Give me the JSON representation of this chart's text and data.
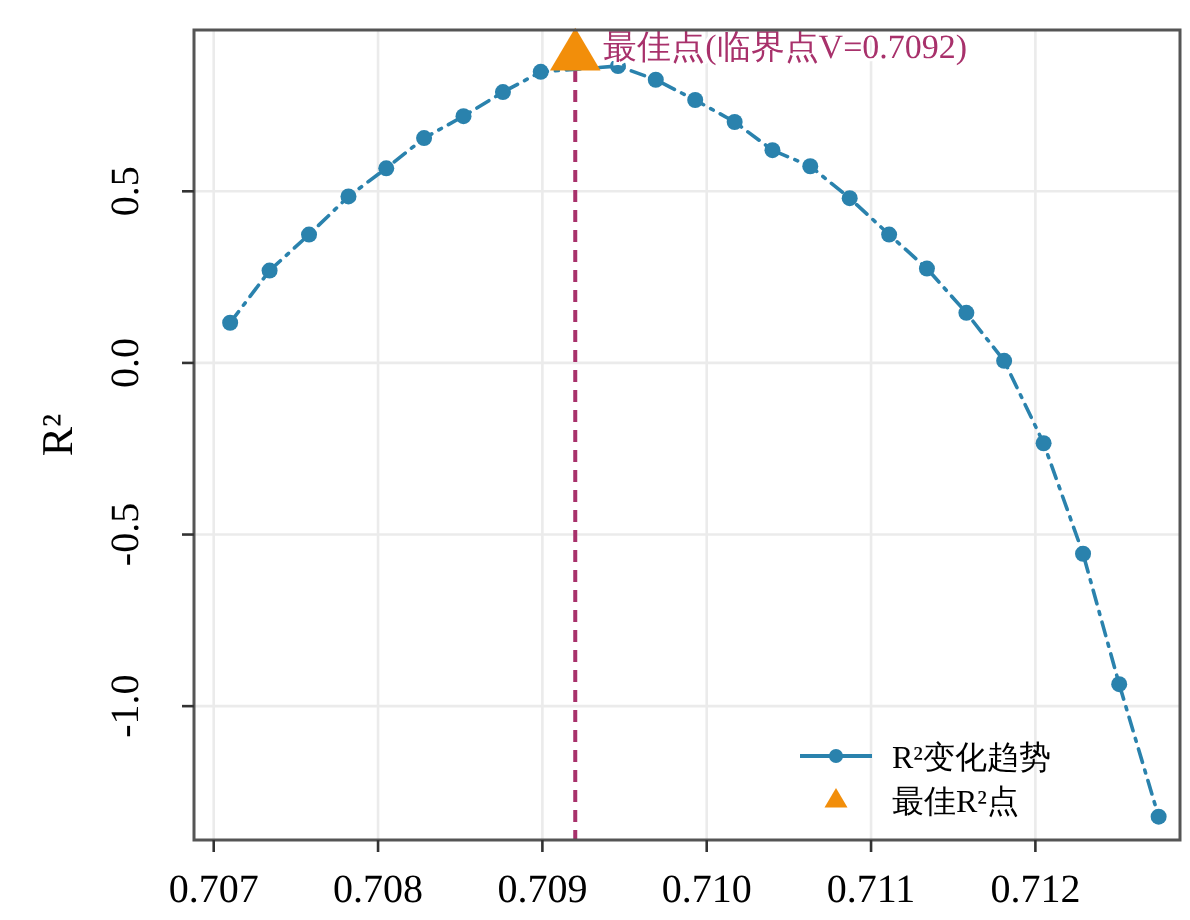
{
  "chart_data": {
    "type": "line",
    "ylabel": "R²",
    "xlim": [
      0.70688,
      0.71288
    ],
    "xticks": [
      {
        "value": 0.707,
        "label": "0.707"
      },
      {
        "value": 0.708,
        "label": "0.708"
      },
      {
        "value": 0.709,
        "label": "0.709"
      },
      {
        "value": 0.71,
        "label": "0.710"
      },
      {
        "value": 0.711,
        "label": "0.711"
      },
      {
        "value": 0.712,
        "label": "0.712"
      }
    ],
    "ylim": [
      -1.39,
      0.97
    ],
    "yticks": [
      {
        "value": -1,
        "label": "-1.0"
      },
      -0.5,
      {
        "value": 0,
        "label": "0.0"
      },
      0.5
    ],
    "grid": true,
    "legend": "bottom right",
    "series": [
      {
        "name": "R²变化趋势",
        "color": "#2a82ad",
        "marker": "circle",
        "line_style": "dashdot",
        "x": [
          0.7071,
          0.70734,
          0.70758,
          0.70782,
          0.70805,
          0.70828,
          0.70852,
          0.70876,
          0.70899,
          0.70922,
          0.70946,
          0.70969,
          0.70993,
          0.71017,
          0.7104,
          0.71063,
          0.71087,
          0.71111,
          0.71134,
          0.71158,
          0.71181,
          0.71205,
          0.71229,
          0.71251,
          0.71275
        ],
        "values": [
          0.117,
          0.269,
          0.374,
          0.485,
          0.567,
          0.655,
          0.719,
          0.789,
          0.848,
          null,
          0.865,
          0.825,
          0.766,
          0.702,
          0.62,
          0.573,
          0.48,
          0.374,
          0.275,
          0.146,
          0.006,
          -0.234,
          -0.556,
          -0.936,
          -1.322
        ]
      },
      {
        "name": "最佳R²点",
        "type": "scatter",
        "color": "#f28e0a",
        "marker": "triangle",
        "x": [
          0.7092
        ],
        "values": [
          0.9
        ]
      }
    ],
    "ref_lines": [
      {
        "axis": "x",
        "value": 0.7092,
        "color": "#a8316b",
        "line_style": "dashed"
      }
    ],
    "annotations": [
      {
        "text": "最佳点(临界点V=0.7092)",
        "x": 0.7092,
        "y": 0.9
      }
    ]
  }
}
